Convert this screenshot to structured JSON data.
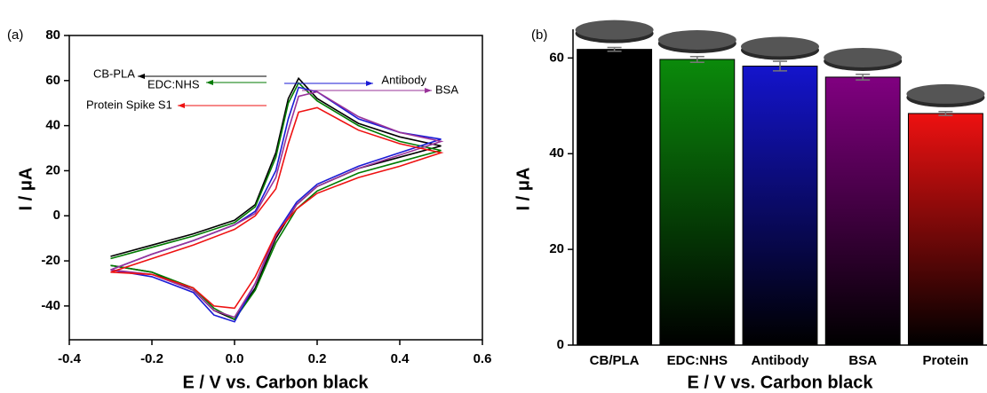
{
  "chart_data": [
    {
      "type": "line",
      "panel_label": "(a)",
      "x_label": "E / V vs. Carbon black",
      "y_label": "I / μA",
      "xlim": [
        -0.4,
        0.6
      ],
      "ylim": [
        -55,
        80
      ],
      "xticks": [
        -0.4,
        -0.2,
        {
          "value": 0,
          "label": "0.0"
        },
        0.2,
        0.4,
        0.6
      ],
      "yticks": [
        -40,
        -20,
        0,
        20,
        40,
        60,
        80
      ],
      "x": [
        -0.3,
        -0.2,
        -0.1,
        0,
        0.05,
        0.1,
        0.13,
        0.155,
        0.2,
        0.3,
        0.4,
        0.5,
        0.4,
        0.3,
        0.2,
        0.15,
        0.1,
        0.05,
        0,
        -0.05,
        -0.1,
        -0.2,
        -0.3
      ],
      "series": [
        {
          "name": "CB-PLA",
          "color": "#000000",
          "values": [
            -18,
            -13,
            -8,
            -2,
            5,
            28,
            52,
            61,
            52,
            41,
            35,
            31,
            26,
            21,
            13,
            5,
            -10,
            -32,
            -46,
            -42,
            -33,
            -25,
            -22
          ]
        },
        {
          "name": "EDC:NHS",
          "color": "#007a00",
          "values": [
            -19,
            -14,
            -9,
            -3,
            4,
            26,
            50,
            59,
            51,
            40,
            33,
            29,
            24,
            19,
            11,
            3,
            -12,
            -33,
            -46,
            -41,
            -32,
            -25,
            -22
          ]
        },
        {
          "name": "Antibody",
          "color": "#1a1ad6",
          "values": [
            -24,
            -17,
            -11,
            -4,
            2,
            20,
            43,
            57,
            55,
            43,
            37,
            34,
            28,
            22,
            14,
            6,
            -8,
            -30,
            -47,
            -44,
            -34,
            -27,
            -24
          ]
        },
        {
          "name": "BSA",
          "color": "#993399",
          "values": [
            -24,
            -17,
            -11,
            -4,
            1,
            17,
            38,
            53,
            55,
            44,
            37,
            33,
            27,
            21,
            13,
            5,
            -9,
            -30,
            -45,
            -42,
            -33,
            -26,
            -24
          ]
        },
        {
          "name": "Protein Spike S1",
          "color": "#ee1111",
          "values": [
            -25,
            -19,
            -13,
            -6,
            0,
            12,
            32,
            46,
            48,
            38,
            32,
            28,
            22,
            17,
            10,
            3,
            -8,
            -27,
            -41,
            -40,
            -32,
            -26,
            -25
          ]
        }
      ]
    },
    {
      "type": "bar",
      "panel_label": "(b)",
      "x_label": "E / V vs. Carbon black",
      "y_label": "I / μA",
      "categories": [
        "CB/PLA",
        "EDC:NHS",
        "Antibody",
        "BSA",
        "Protein"
      ],
      "values": [
        61.8,
        59.7,
        58.3,
        56.0,
        48.4
      ],
      "errors": [
        0.4,
        0.6,
        1.0,
        0.6,
        0.4
      ],
      "colors": [
        "#000000",
        "#0b8a0b",
        "#1414cc",
        "#800080",
        "#ee1111"
      ],
      "ylim": [
        0,
        66
      ],
      "yticks": [
        0,
        20,
        40,
        60
      ]
    }
  ]
}
